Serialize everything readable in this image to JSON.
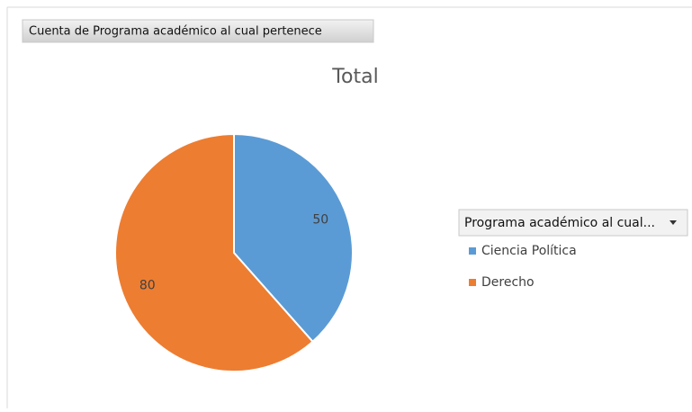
{
  "chart_data": {
    "type": "pie",
    "field_button": "Cuenta de Programa académico al cual pertenece",
    "title": "Total",
    "legend_title": "Programa académico al cual...",
    "categories": [
      "Ciencia Política",
      "Derecho"
    ],
    "values": [
      50,
      80
    ],
    "colors": [
      "#5b9bd5",
      "#ed7d31"
    ],
    "legend": "right"
  }
}
